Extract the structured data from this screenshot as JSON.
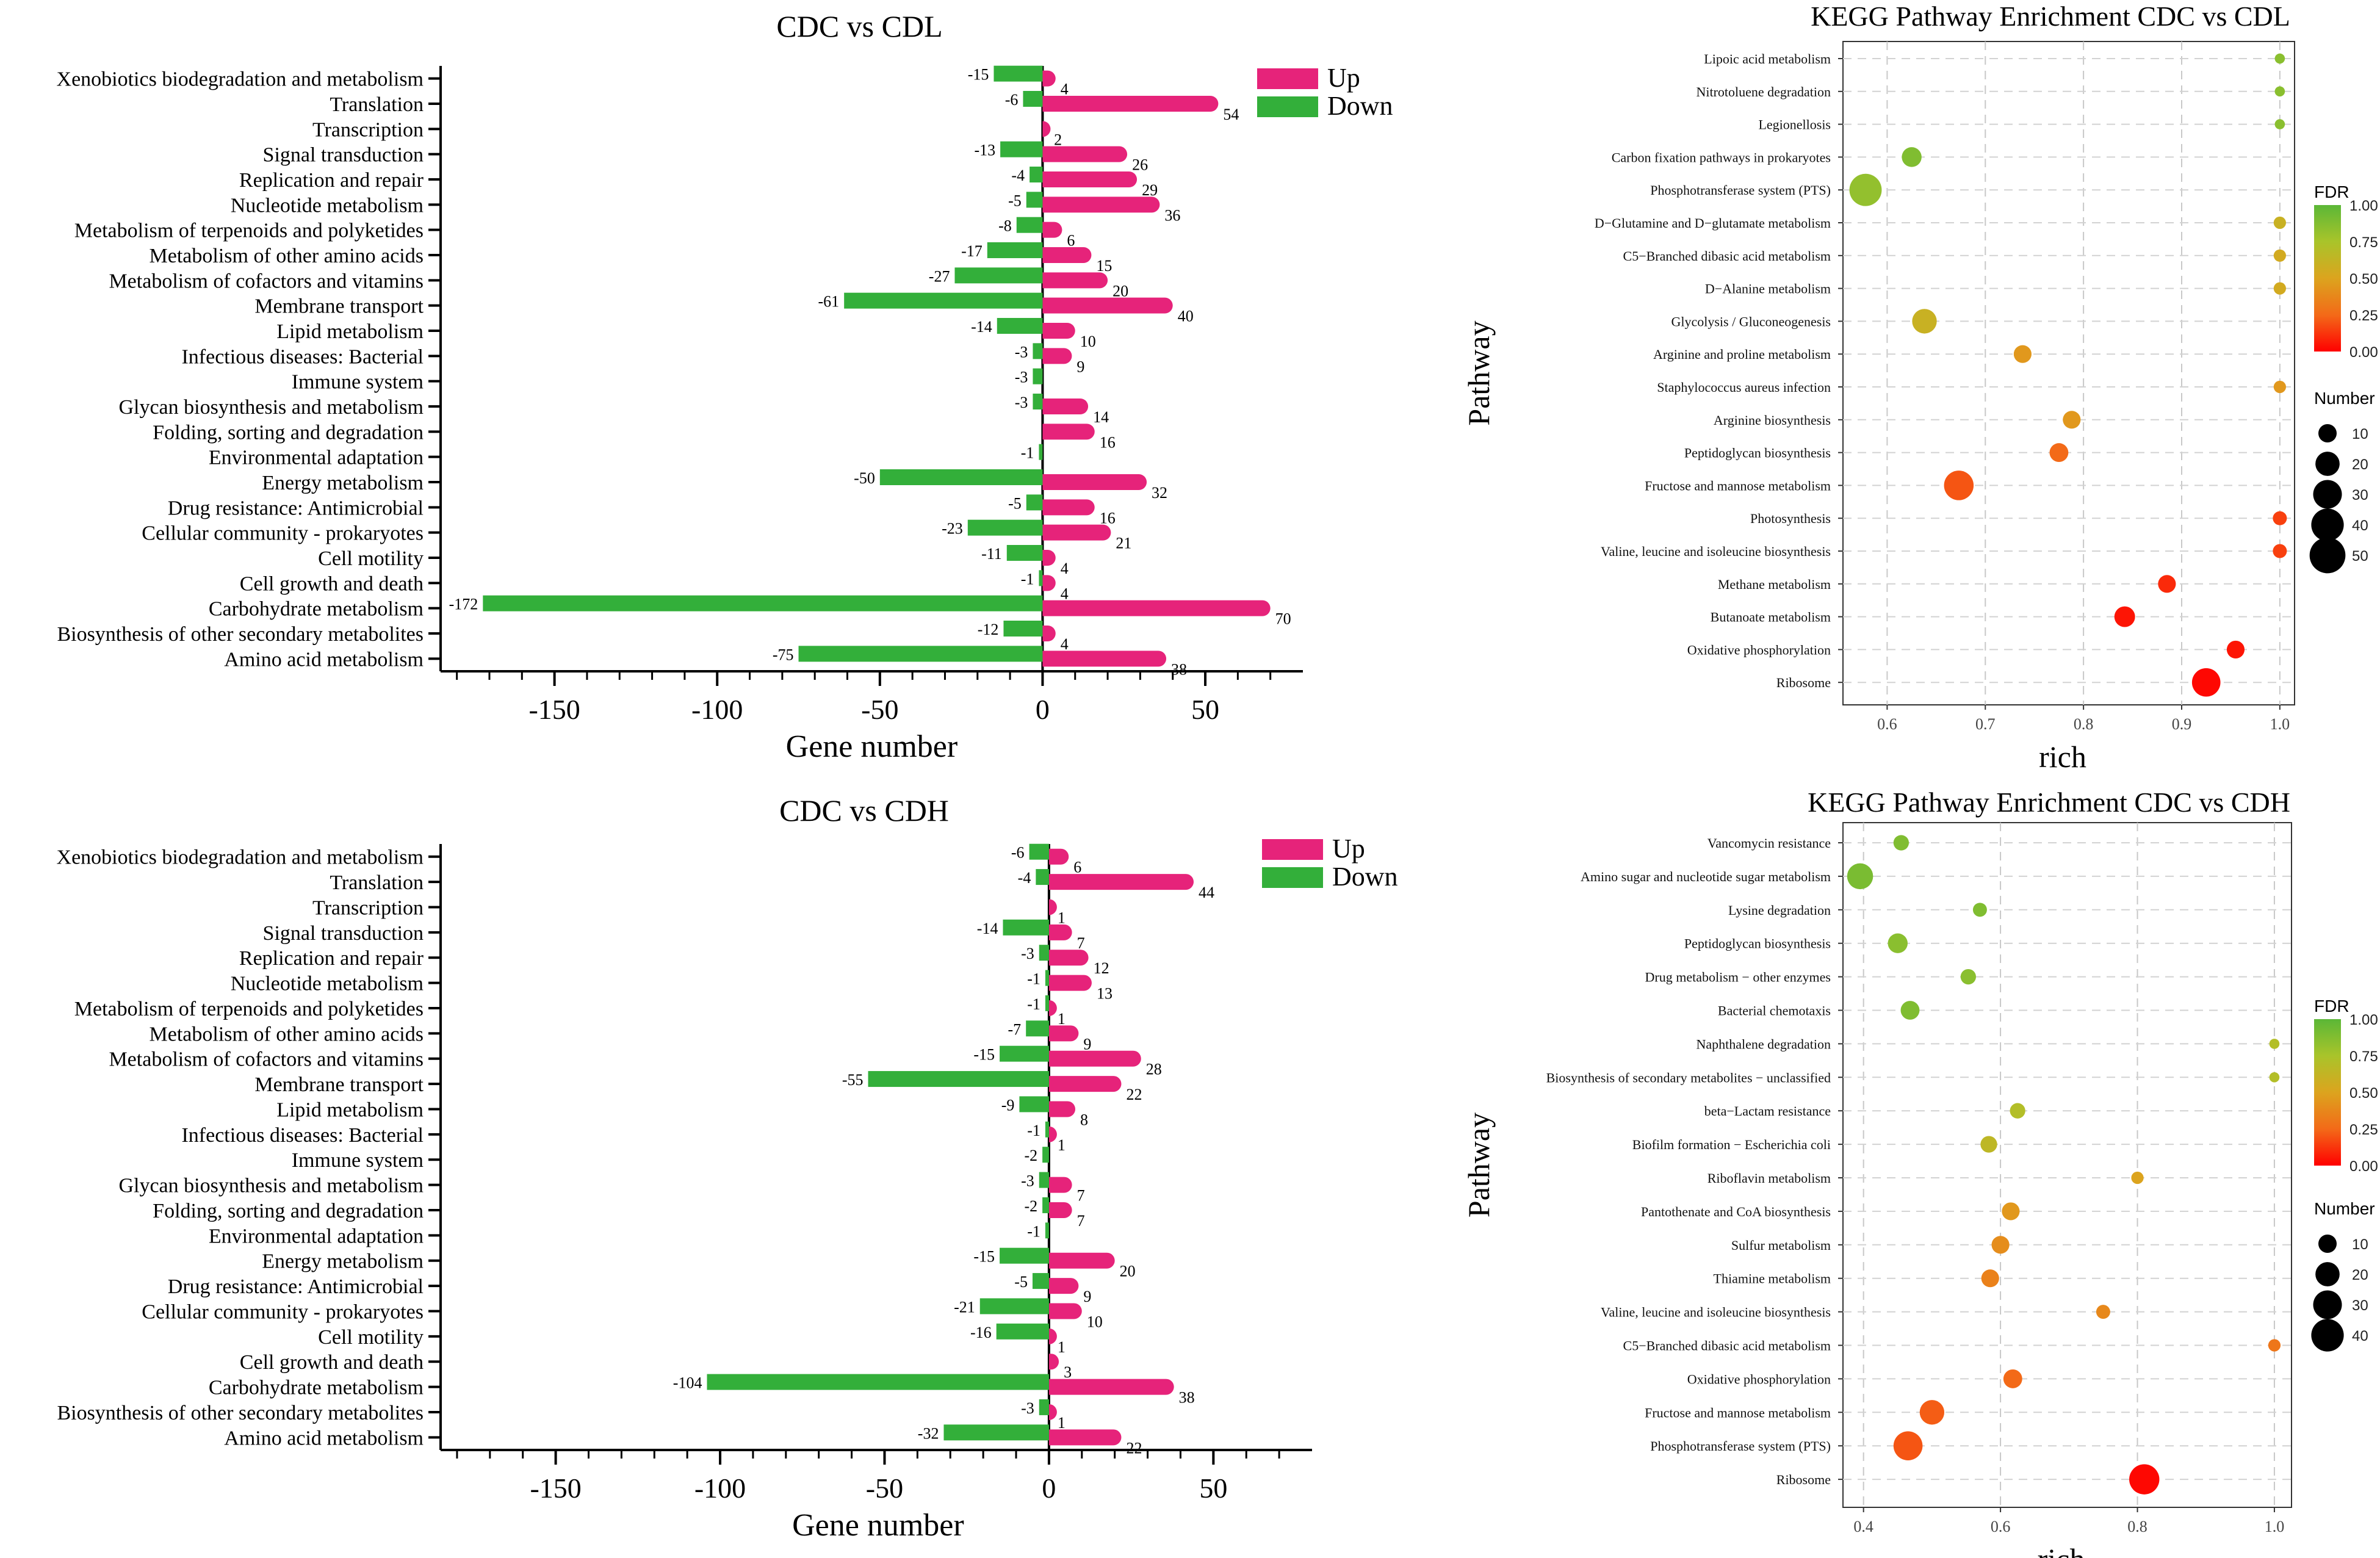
{
  "charts": {
    "bar_cdl": {
      "type": "bar",
      "title": "CDC vs CDL",
      "xlabel": "Gene number",
      "xlim": [
        -185,
        80
      ],
      "xticks": [
        -150,
        -100,
        -50,
        0,
        50
      ],
      "legend": {
        "up": "Up",
        "down": "Down"
      },
      "colors": {
        "up": "#E6237A",
        "down": "#33AF3A"
      },
      "categories": [
        "Xenobiotics biodegradation and metabolism",
        "Translation",
        "Transcription",
        "Signal transduction",
        "Replication and repair",
        "Nucleotide metabolism",
        "Metabolism of terpenoids and polyketides",
        "Metabolism of other amino acids",
        "Metabolism of cofactors and vitamins",
        "Membrane transport",
        "Lipid metabolism",
        "Infectious diseases: Bacterial",
        "Immune system",
        "Glycan biosynthesis and metabolism",
        "Folding, sorting and degradation",
        "Environmental adaptation",
        "Energy metabolism",
        "Drug resistance: Antimicrobial",
        "Cellular community - prokaryotes",
        "Cell motility",
        "Cell growth and death",
        "Carbohydrate metabolism",
        "Biosynthesis of other secondary metabolites",
        "Amino acid metabolism"
      ],
      "up": [
        4,
        54,
        2,
        26,
        29,
        36,
        6,
        15,
        20,
        40,
        10,
        9,
        null,
        14,
        16,
        null,
        32,
        16,
        21,
        4,
        4,
        70,
        4,
        38
      ],
      "down": [
        -15,
        -6,
        null,
        -13,
        -4,
        -5,
        -8,
        -17,
        -27,
        -61,
        -14,
        -3,
        -3,
        -3,
        null,
        -1,
        -50,
        -5,
        -23,
        -11,
        -1,
        -172,
        -12,
        -75
      ]
    },
    "bar_cdh": {
      "type": "bar",
      "title": "CDC vs CDH",
      "xlabel": "Gene number",
      "xlim": [
        -185,
        80
      ],
      "xticks": [
        -150,
        -100,
        -50,
        0,
        50
      ],
      "legend": {
        "up": "Up",
        "down": "Down"
      },
      "colors": {
        "up": "#E6237A",
        "down": "#33AF3A"
      },
      "categories": [
        "Xenobiotics biodegradation and metabolism",
        "Translation",
        "Transcription",
        "Signal transduction",
        "Replication and repair",
        "Nucleotide metabolism",
        "Metabolism of terpenoids and polyketides",
        "Metabolism of other amino acids",
        "Metabolism of cofactors and vitamins",
        "Membrane transport",
        "Lipid metabolism",
        "Infectious diseases: Bacterial",
        "Immune system",
        "Glycan biosynthesis and metabolism",
        "Folding, sorting and degradation",
        "Environmental adaptation",
        "Energy metabolism",
        "Drug resistance: Antimicrobial",
        "Cellular community - prokaryotes",
        "Cell motility",
        "Cell growth and death",
        "Carbohydrate metabolism",
        "Biosynthesis of other secondary metabolites",
        "Amino acid metabolism"
      ],
      "up": [
        6,
        44,
        1,
        7,
        12,
        13,
        1,
        9,
        28,
        22,
        8,
        1,
        null,
        7,
        7,
        null,
        20,
        9,
        10,
        1,
        3,
        38,
        1,
        22
      ],
      "down": [
        -6,
        -4,
        null,
        -14,
        -3,
        -1,
        -1,
        -7,
        -15,
        -55,
        -9,
        -1,
        -2,
        -3,
        -2,
        -1,
        -15,
        -5,
        -21,
        -16,
        null,
        -104,
        -3,
        -32
      ]
    },
    "kegg_cdl": {
      "type": "scatter",
      "title": "KEGG Pathway Enrichment CDC vs CDL",
      "xlabel": "rich",
      "ylabel": "Pathway",
      "xlim": [
        0.555,
        1.015
      ],
      "xticks": [
        0.6,
        0.7,
        0.8,
        0.9,
        1.0
      ],
      "xtick_labels": [
        "0.6",
        "0.7",
        "0.8",
        "0.9",
        "1.0"
      ],
      "pathways": [
        "Lipoic acid metabolism",
        "Nitrotoluene degradation",
        "Legionellosis",
        "Carbon fixation pathways in prokaryotes",
        "Phosphotransferase system (PTS)",
        "D−Glutamine and D−glutamate metabolism",
        "C5−Branched dibasic acid metabolism",
        "D−Alanine metabolism",
        "Glycolysis / Gluconeogenesis",
        "Arginine and proline metabolism",
        "Staphylococcus aureus infection",
        "Arginine biosynthesis",
        "Peptidoglycan biosynthesis",
        "Fructose and mannose metabolism",
        "Photosynthesis",
        "Valine, leucine and isoleucine biosynthesis",
        "Methane metabolism",
        "Butanoate metabolism",
        "Oxidative phosphorylation",
        "Ribosome"
      ],
      "rich": [
        1.0,
        1.0,
        1.0,
        0.625,
        0.578,
        1.0,
        1.0,
        1.0,
        0.638,
        0.738,
        1.0,
        0.788,
        0.775,
        0.673,
        1.0,
        1.0,
        0.885,
        0.842,
        0.955,
        0.925
      ],
      "number": [
        1,
        1,
        1,
        8,
        27,
        2,
        2,
        2,
        14,
        6,
        2,
        6,
        7,
        22,
        3,
        3,
        6,
        9,
        6,
        20
      ],
      "fdr": [
        0.85,
        0.85,
        0.85,
        0.88,
        0.82,
        0.6,
        0.55,
        0.55,
        0.6,
        0.45,
        0.45,
        0.45,
        0.25,
        0.2,
        0.15,
        0.15,
        0.1,
        0.05,
        0.05,
        0.02
      ],
      "fdr_legend": {
        "title": "FDR",
        "ticks": [
          "1.00",
          "0.75",
          "0.50",
          "0.25",
          "0.00"
        ]
      },
      "number_legend": {
        "title": "Number",
        "values": [
          10,
          20,
          30,
          40,
          50
        ]
      }
    },
    "kegg_cdh": {
      "type": "scatter",
      "title": "KEGG Pathway Enrichment CDC vs CDH",
      "xlabel": "rich",
      "ylabel": "Pathway",
      "xlim": [
        0.37,
        1.025
      ],
      "xticks": [
        0.4,
        0.6,
        0.8,
        1.0
      ],
      "xtick_labels": [
        "0.4",
        "0.6",
        "0.8",
        "1.0"
      ],
      "pathways": [
        "Vancomycin resistance",
        "Amino sugar and nucleotide sugar metabolism",
        "Lysine degradation",
        "Peptidoglycan biosynthesis",
        "Drug metabolism − other enzymes",
        "Bacterial chemotaxis",
        "Naphthalene degradation",
        "Biosynthesis of secondary metabolites − unclassified",
        "beta−Lactam resistance",
        "Biofilm formation − Escherichia coli",
        "Riboflavin metabolism",
        "Pantothenate and CoA biosynthesis",
        "Sulfur metabolism",
        "Thiamine metabolism",
        "Valine, leucine and isoleucine biosynthesis",
        "C5−Branched dibasic acid metabolism",
        "Oxidative phosphorylation",
        "Fructose and mannose metabolism",
        "Phosphotransferase system (PTS)",
        "Ribosome"
      ],
      "rich": [
        0.455,
        0.395,
        0.57,
        0.45,
        0.553,
        0.468,
        1.0,
        1.0,
        0.625,
        0.583,
        0.8,
        0.615,
        0.6,
        0.585,
        0.75,
        1.0,
        0.618,
        0.5,
        0.465,
        0.81
      ],
      "number": [
        4,
        16,
        3,
        8,
        4,
        7,
        1,
        1,
        4,
        5,
        2,
        6,
        6,
        6,
        3,
        2,
        7,
        14,
        21,
        23
      ],
      "fdr": [
        0.88,
        0.9,
        0.88,
        0.85,
        0.85,
        0.88,
        0.7,
        0.7,
        0.7,
        0.65,
        0.5,
        0.45,
        0.4,
        0.35,
        0.38,
        0.3,
        0.25,
        0.22,
        0.2,
        0.02
      ],
      "fdr_legend": {
        "title": "FDR",
        "ticks": [
          "1.00",
          "0.75",
          "0.50",
          "0.25",
          "0.00"
        ]
      },
      "number_legend": {
        "title": "Number",
        "values": [
          10,
          20,
          30,
          40
        ]
      }
    }
  }
}
